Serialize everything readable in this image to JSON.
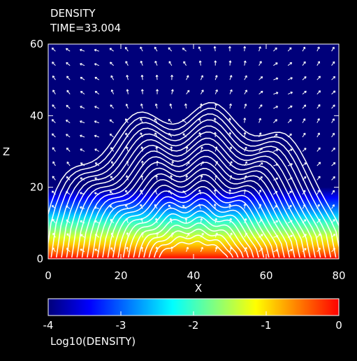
{
  "chart_data": {
    "type": "heatmap",
    "title": "DENSITY",
    "subtitle": "TIME=33.004",
    "xlabel": "X",
    "ylabel": "Z",
    "xlim": [
      0,
      80
    ],
    "ylim": [
      0,
      60
    ],
    "x_ticks": [
      0,
      20,
      40,
      60,
      80
    ],
    "y_ticks": [
      0,
      20,
      40,
      60
    ],
    "colorbar": {
      "label": "Log10(DENSITY)",
      "range": [
        -4,
        0
      ],
      "ticks": [
        -4,
        -3,
        -2,
        -1,
        0
      ],
      "tick_labels": [
        "-4",
        "-3",
        "-2",
        "-1",
        "0"
      ],
      "colormap": [
        "#00007a",
        "#0000ff",
        "#0080ff",
        "#00ffff",
        "#80ff80",
        "#ffff00",
        "#ff8000",
        "#ff0000"
      ]
    },
    "density_profile": {
      "z": [
        0,
        2,
        4,
        6,
        8,
        10,
        12,
        14,
        17,
        20,
        60
      ],
      "log10_density": [
        0,
        -0.5,
        -0.9,
        -1.3,
        -1.7,
        -2.0,
        -2.5,
        -2.9,
        -3.4,
        -4,
        -4
      ]
    },
    "field_line_count": 24,
    "overlay": [
      "magnetic field lines",
      "velocity vectors"
    ],
    "grid": false
  }
}
